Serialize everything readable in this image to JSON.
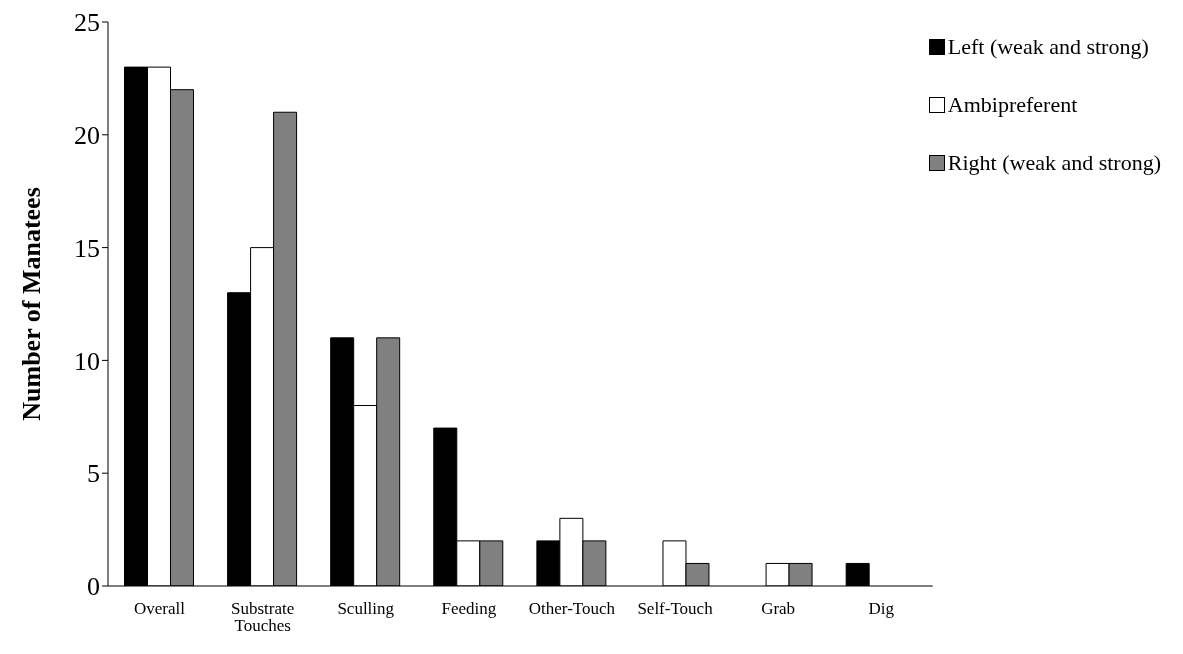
{
  "chart_data": {
    "type": "bar",
    "ylabel": "Number of Manatees",
    "categories": [
      "Overall",
      "Substrate Touches",
      "Sculling",
      "Feeding",
      "Other-Touch",
      "Self-Touch",
      "Grab",
      "Dig"
    ],
    "series": [
      {
        "name": "Left (weak and strong)",
        "color": "#000000",
        "values": [
          23,
          13,
          11,
          7,
          2,
          0,
          0,
          1
        ]
      },
      {
        "name": "Ambipreferent",
        "color": "#ffffff",
        "values": [
          23,
          15,
          8,
          2,
          3,
          2,
          1,
          0
        ]
      },
      {
        "name": "Right (weak and strong)",
        "color": "#808080",
        "values": [
          22,
          21,
          11,
          2,
          2,
          1,
          1,
          0
        ]
      }
    ],
    "ylim": [
      0,
      25
    ],
    "yticks": [
      0,
      5,
      10,
      15,
      20,
      25
    ],
    "grid": false,
    "legend": "top right"
  }
}
